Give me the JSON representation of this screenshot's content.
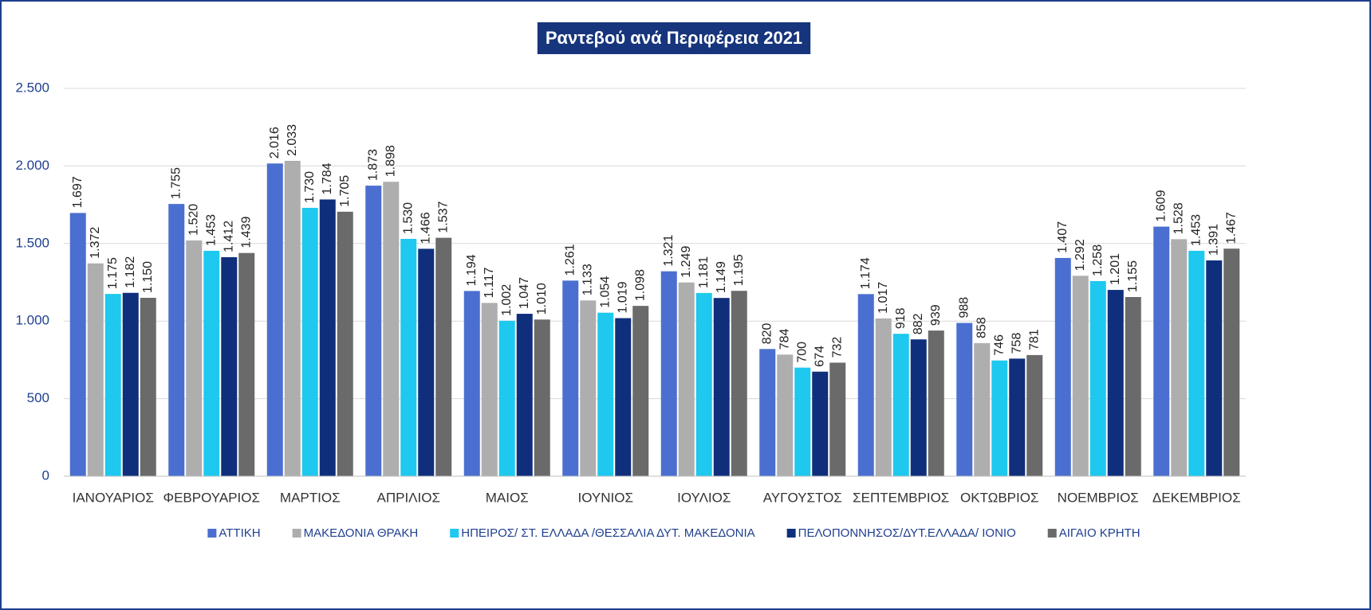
{
  "chart_data": {
    "type": "bar",
    "title": "Ραντεβού ανά Περιφέρεια 2021",
    "categories": [
      "ΙΑΝΟΥΑΡΙΟΣ",
      "ΦΕΒΡΟΥΑΡΙΟΣ",
      "ΜΑΡΤΙΟΣ",
      "ΑΠΡΙΛΙΟΣ",
      "ΜΑΙΟΣ",
      "ΙΟΥΝΙΟΣ",
      "ΙΟΥΛΙΟΣ",
      "ΑΥΓΟΥΣΤΟΣ",
      "ΣΕΠΤΕΜΒΡΙΟΣ",
      "ΟΚΤΩΒΡΙΟΣ",
      "ΝΟΕΜΒΡΙΟΣ",
      "ΔΕΚΕΜΒΡΙΟΣ"
    ],
    "series": [
      {
        "name": "ΑΤΤΙΚΗ",
        "color": "#4a6fd0",
        "values": [
          1697,
          1755,
          2016,
          1873,
          1194,
          1261,
          1321,
          820,
          1174,
          988,
          1407,
          1609
        ],
        "value_labels": [
          "1.697",
          "1.755",
          "2.016",
          "1.873",
          "1.194",
          "1.261",
          "1.321",
          "820",
          "1.174",
          "988",
          "1.407",
          "1.609"
        ]
      },
      {
        "name": "ΜΑΚΕΔΟΝΙΑ ΘΡΑΚΗ",
        "color": "#aeaeae",
        "values": [
          1372,
          1520,
          2033,
          1898,
          1117,
          1133,
          1249,
          784,
          1017,
          858,
          1292,
          1528
        ],
        "value_labels": [
          "1.372",
          "1.520",
          "2.033",
          "1.898",
          "1.117",
          "1.133",
          "1.249",
          "784",
          "1.017",
          "858",
          "1.292",
          "1.528"
        ]
      },
      {
        "name": "ΗΠΕΙΡΟΣ/ ΣΤ. ΕΛΛΑΔΑ /ΘΕΣΣΑΛΙΑ ΔΥΤ. ΜΑΚΕΔΟΝΙΑ",
        "color": "#1ec8ee",
        "values": [
          1175,
          1453,
          1730,
          1530,
          1002,
          1054,
          1181,
          700,
          918,
          746,
          1258,
          1453
        ],
        "value_labels": [
          "1.175",
          "1.453",
          "1.730",
          "1.530",
          "1.002",
          "1.054",
          "1.181",
          "700",
          "918",
          "746",
          "1.258",
          "1.453"
        ]
      },
      {
        "name": "ΠΕΛΟΠΟΝΝΗΣΟΣ/ΔΥΤ.ΕΛΛΑΔΑ/ ΙΟΝΙΟ",
        "color": "#0f2f7c",
        "values": [
          1182,
          1412,
          1784,
          1466,
          1047,
          1019,
          1149,
          674,
          882,
          758,
          1201,
          1391
        ],
        "value_labels": [
          "1.182",
          "1.412",
          "1.784",
          "1.466",
          "1.047",
          "1.019",
          "1.149",
          "674",
          "882",
          "758",
          "1.201",
          "1.391"
        ]
      },
      {
        "name": "ΑΙΓΑΙΟ ΚΡΗΤΗ",
        "color": "#6a6a6a",
        "values": [
          1150,
          1439,
          1705,
          1537,
          1010,
          1098,
          1195,
          732,
          939,
          781,
          1155,
          1467
        ],
        "value_labels": [
          "1.150",
          "1.439",
          "1.705",
          "1.537",
          "1.010",
          "1.098",
          "1.195",
          "732",
          "939",
          "781",
          "1.155",
          "1.467"
        ]
      }
    ],
    "ylim": [
      0,
      2500
    ],
    "yticks": [
      0,
      500,
      {
        "value": 1000,
        "label": "1.000"
      },
      {
        "value": 1500,
        "label": "1.500"
      },
      {
        "value": 2000,
        "label": "2.000"
      },
      {
        "value": 2500,
        "label": "2.500"
      }
    ],
    "grid": true,
    "legend": "bottom"
  }
}
